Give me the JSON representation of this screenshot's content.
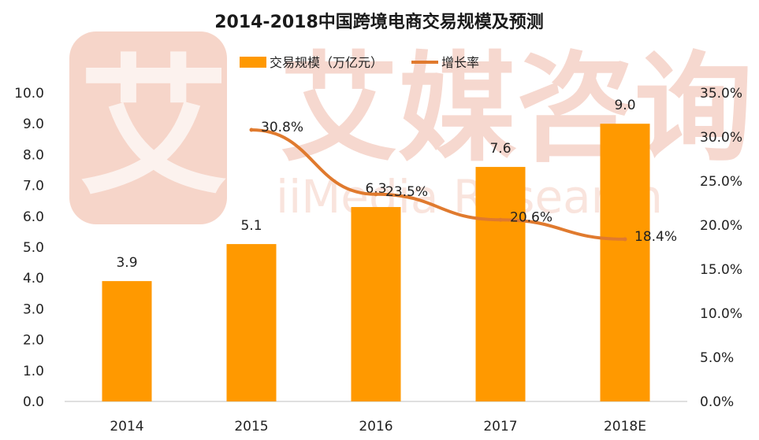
{
  "colors": {
    "bar": "#FF9900",
    "line": "#E07A2E",
    "watermark": "#F3C9BC",
    "axis": "#BFBFBF"
  },
  "watermark": {
    "brand_cn": "艾媒咨询",
    "brand_en": "iiMedia Research"
  },
  "chart_data": {
    "type": "bar",
    "title": "2014-2018中国跨境电商交易规模及预测",
    "categories": [
      "2014",
      "2015",
      "2016",
      "2017",
      "2018E"
    ],
    "series": [
      {
        "name": "交易规模（万亿元）",
        "type": "bar",
        "axis": "left",
        "values": [
          3.9,
          5.1,
          6.3,
          7.6,
          9.0
        ],
        "labels": [
          "3.9",
          "5.1",
          "6.3",
          "7.6",
          "9.0"
        ]
      },
      {
        "name": "增长率",
        "type": "line",
        "axis": "right",
        "x": [
          "2015",
          "2016",
          "2017",
          "2018E"
        ],
        "values": [
          30.8,
          23.5,
          20.6,
          18.4
        ],
        "labels": [
          "30.8%",
          "23.5%",
          "20.6%",
          "18.4%"
        ]
      }
    ],
    "y_left": {
      "min": 0,
      "max": 10,
      "ticks": [
        "0.0",
        "1.0",
        "2.0",
        "3.0",
        "4.0",
        "5.0",
        "6.0",
        "7.0",
        "8.0",
        "9.0",
        "10.0"
      ]
    },
    "y_right": {
      "min": 0,
      "max": 35,
      "ticks": [
        "0.0%",
        "5.0%",
        "10.0%",
        "15.0%",
        "20.0%",
        "25.0%",
        "30.0%",
        "35.0%"
      ]
    },
    "legend": {
      "position": "top-center"
    },
    "grid": false
  }
}
